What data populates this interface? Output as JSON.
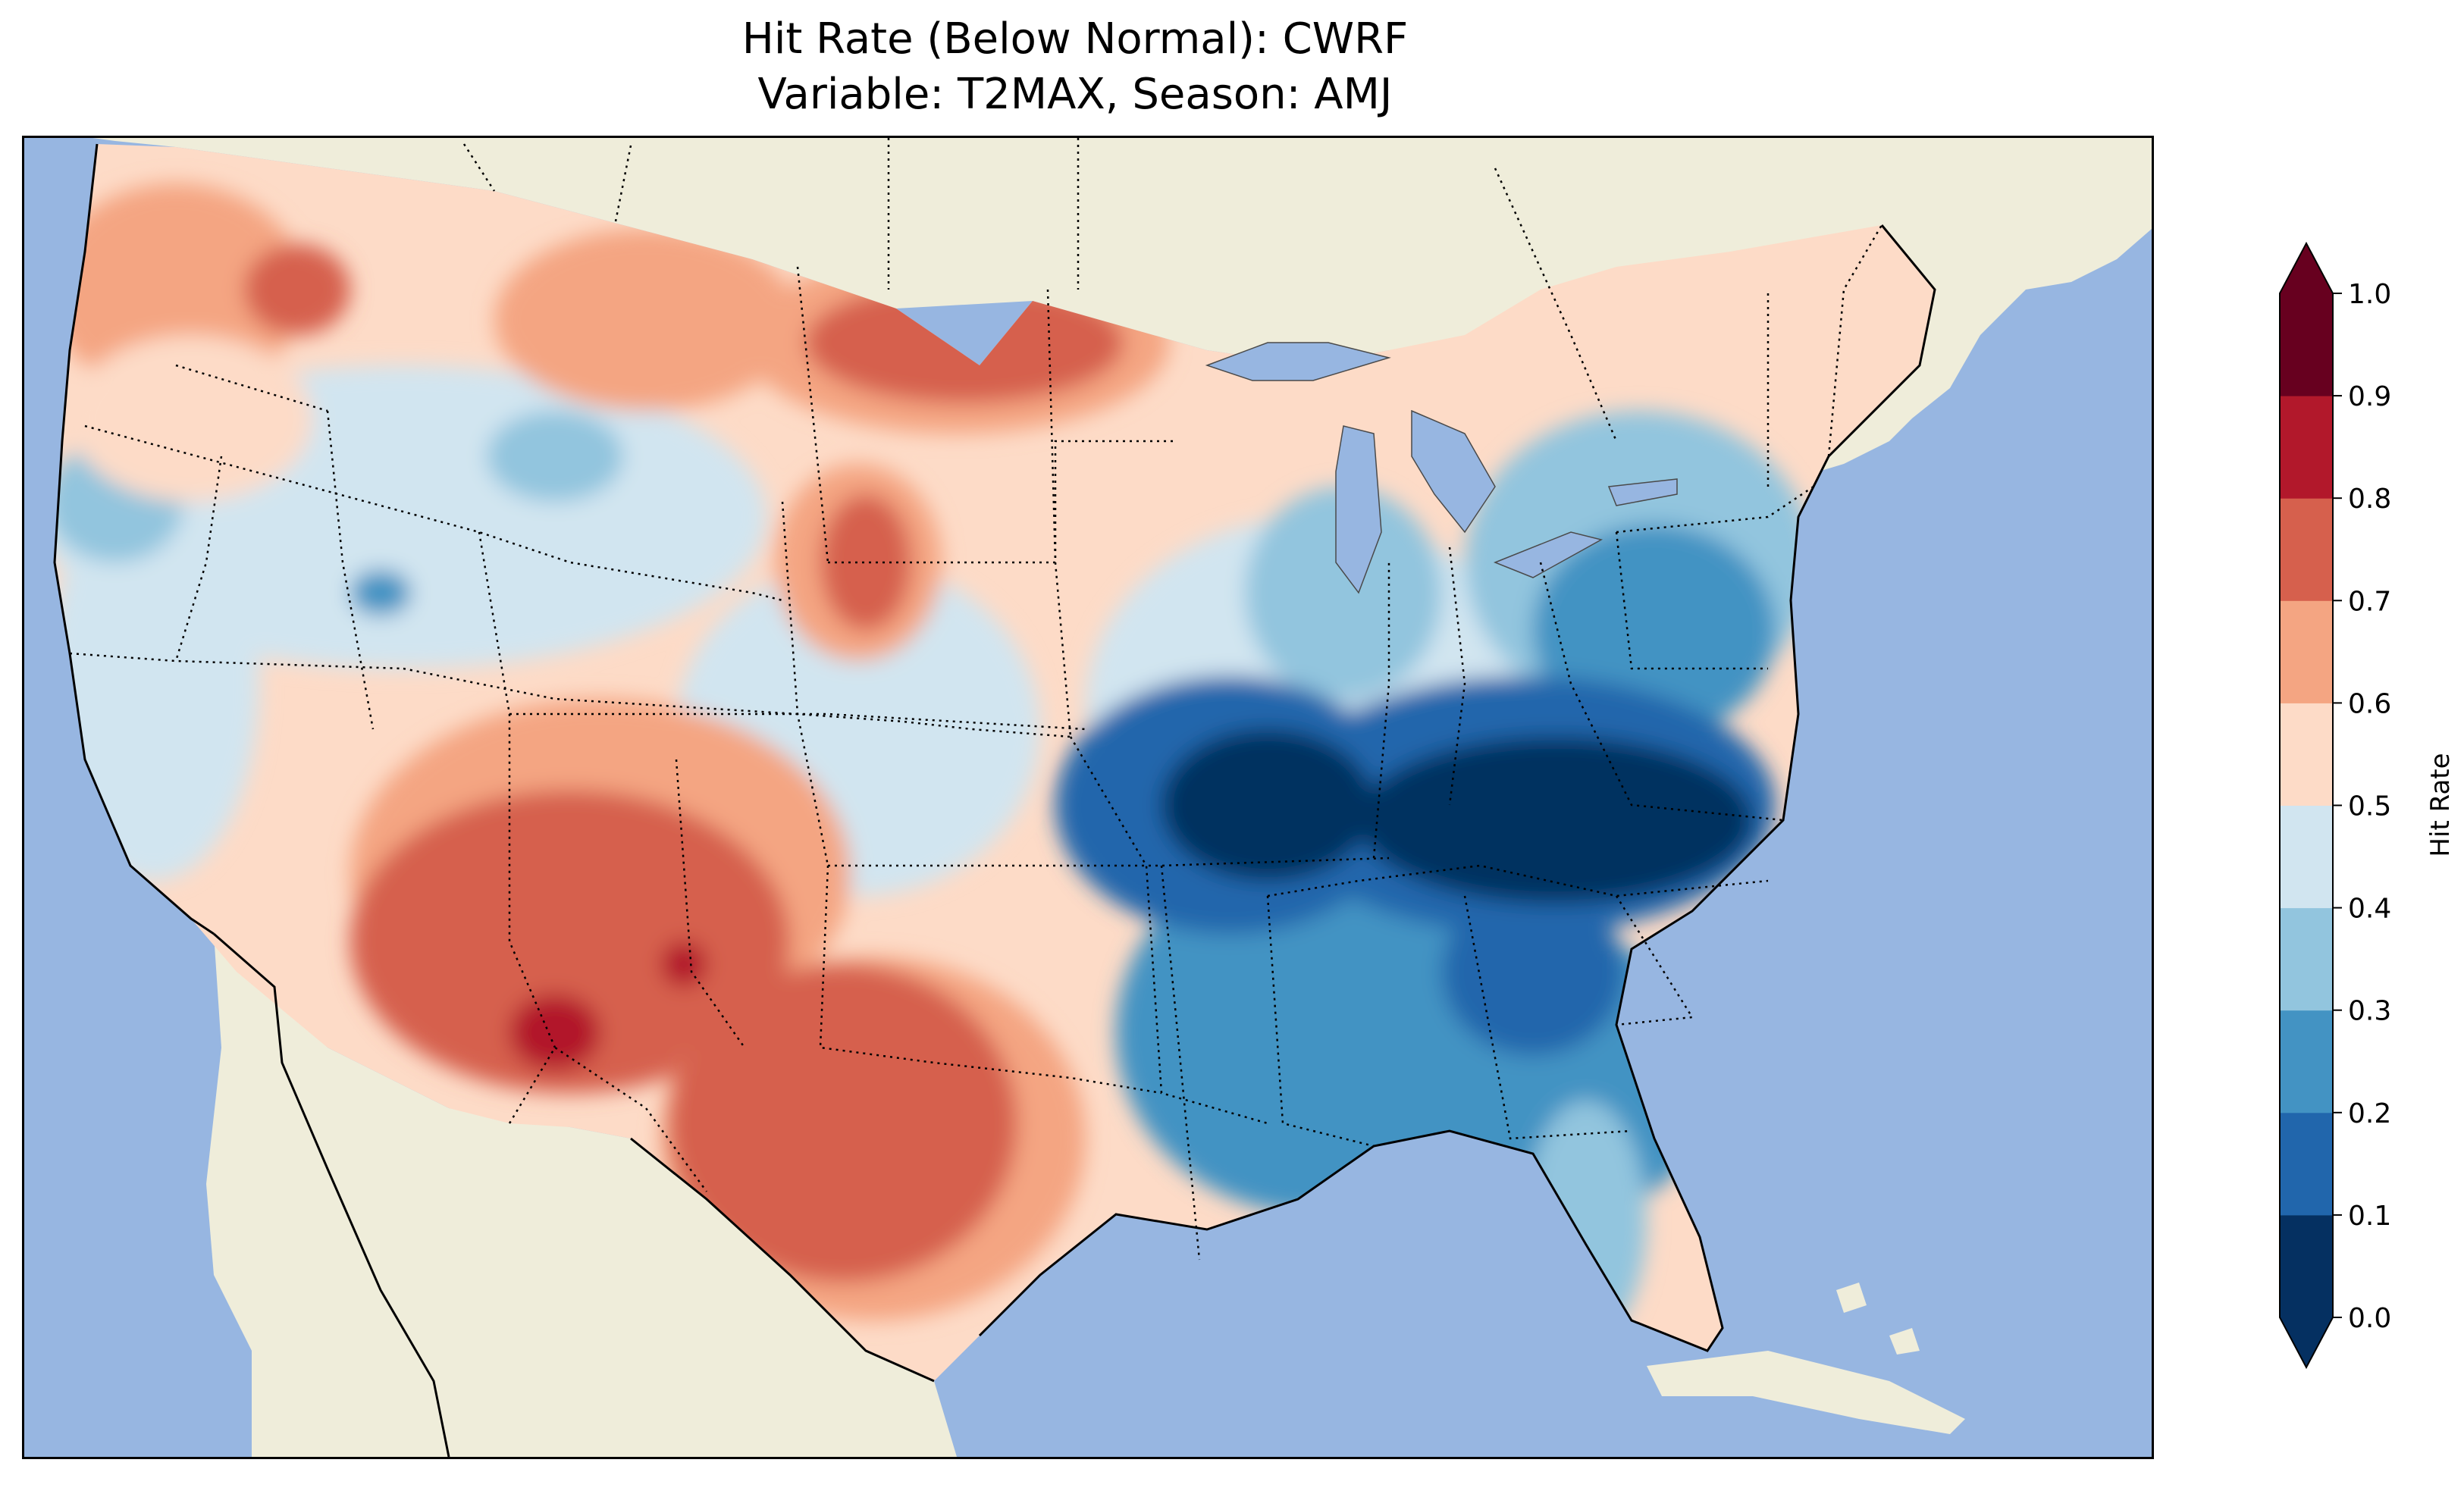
{
  "title_line1": "Hit Rate (Below Normal): CWRF",
  "title_line2": "Variable: T2MAX, Season: AMJ",
  "colorbar": {
    "label": "Hit Rate",
    "ticks": [
      "0.0",
      "0.1",
      "0.2",
      "0.3",
      "0.4",
      "0.5",
      "0.6",
      "0.7",
      "0.8",
      "0.9",
      "1.0"
    ],
    "colors": [
      "#053061",
      "#2166ac",
      "#4393c3",
      "#92c5de",
      "#d1e5f0",
      "#fddbc7",
      "#f4a582",
      "#d6604d",
      "#b2182b",
      "#67001f"
    ],
    "under_color": "#053061",
    "over_color": "#67001f",
    "extend": "both"
  },
  "map": {
    "ocean_color": "#97b6e1",
    "land_color": "#efedda",
    "region": "Contiguous United States",
    "pattern_summary": "Hit rate 0.5-0.8 over the West and Texas; 0.0-0.2 over the Ohio Valley and Southeast"
  }
}
